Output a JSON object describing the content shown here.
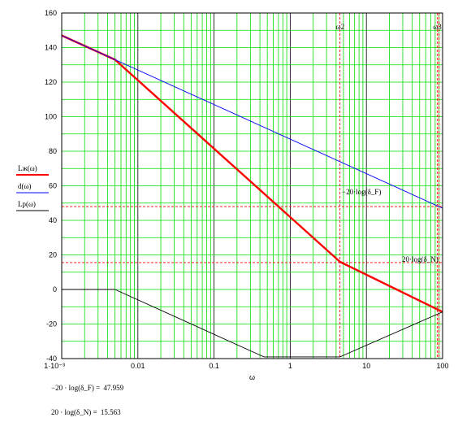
{
  "chart_data": {
    "type": "line",
    "x_scale": "log",
    "xlim": [
      0.001,
      100
    ],
    "ylim": [
      -40,
      160
    ],
    "grid": true,
    "xlabel": "ω",
    "x_ticks": [
      "1·10⁻³",
      "0.01",
      "0.1",
      "1",
      "10",
      "100"
    ],
    "y_ticks": [
      "160",
      "140",
      "120",
      "100",
      "80",
      "60",
      "40",
      "20",
      "0",
      "-20",
      "-40"
    ],
    "legend": [
      {
        "label": "Lж(ω)",
        "color": "#ff0000"
      },
      {
        "label": "d(ω)",
        "color": "#0000ff"
      },
      {
        "label": "Lp(ω)",
        "color": "#000000"
      }
    ],
    "series": [
      {
        "name": "Lж(ω)",
        "color": "#ff0000",
        "x": [
          0.001,
          0.005,
          4.5,
          100
        ],
        "y": [
          147,
          133,
          16,
          -13
        ]
      },
      {
        "name": "d(ω)",
        "color": "#0000ff",
        "x": [
          0.001,
          100
        ],
        "y": [
          147,
          47
        ]
      },
      {
        "name": "Lp(ω)",
        "color": "#000000",
        "x": [
          0.001,
          0.005,
          0.45,
          4.5,
          100
        ],
        "y": [
          0,
          0,
          -39,
          -39,
          -13
        ]
      }
    ],
    "hlines": [
      {
        "y": 47.959,
        "label": "−20·log(δ_F)",
        "color": "#ff0000"
      },
      {
        "y": 15.563,
        "label": "20·log(δ_N)",
        "color": "#ff0000"
      }
    ],
    "vlines": [
      {
        "x": 4.5,
        "label": "ω2",
        "color": "#ff0000"
      },
      {
        "x": 85,
        "label": "ω3",
        "color": "#ff0000"
      },
      {
        "x": 90,
        "label": "",
        "color": "#ff0000"
      }
    ]
  },
  "results": [
    {
      "expr": "−20 · log(δ_F) =",
      "value": "47.959"
    },
    {
      "expr": "20 · log(δ_N) =",
      "value": "15.563"
    }
  ]
}
